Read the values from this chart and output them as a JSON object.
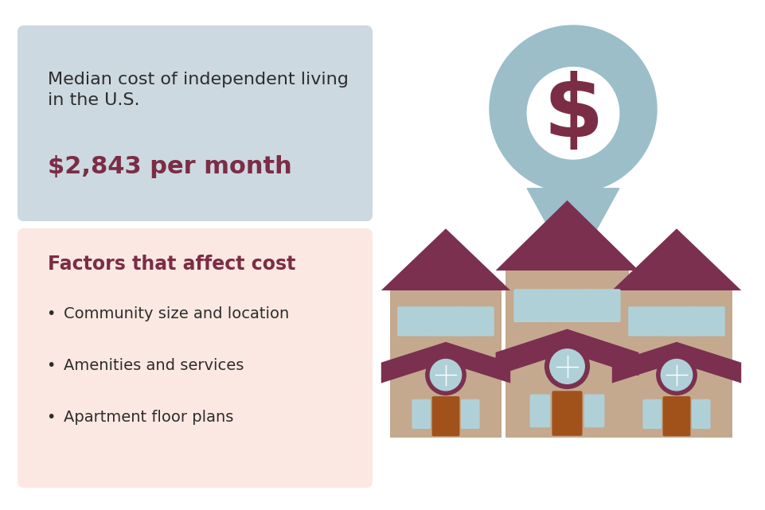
{
  "bg_color": "#ffffff",
  "top_box_color": "#ccd9e0",
  "bottom_box_color": "#fce8e2",
  "title_text": "Median cost of independent living\nin the U.S.",
  "title_color": "#2d2d2d",
  "cost_text": "$2,843 per month",
  "cost_color": "#7b2d45",
  "factors_title": "Factors that affect cost",
  "factors_color": "#7b2d45",
  "factors": [
    "Community size and location",
    "Amenities and services",
    "Apartment floor plans"
  ],
  "factors_text_color": "#2d2d2d",
  "pin_color": "#9bbec8",
  "pin_circle_color": "#ffffff",
  "dollar_color": "#7b2d45",
  "house_wall_color": "#c4a98e",
  "house_roof_color": "#7b3050",
  "house_window_color": "#b0d0d8",
  "house_door_color": "#a0521a",
  "house_accent_color": "#c4a98e"
}
